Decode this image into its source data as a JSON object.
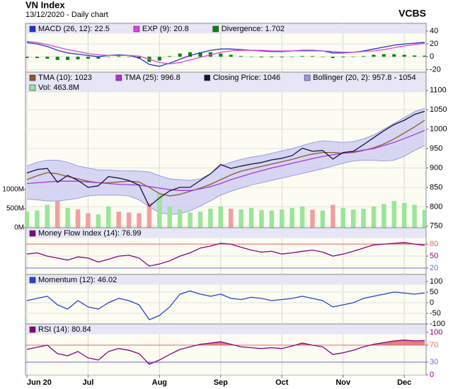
{
  "chart_data": {
    "type": "multi-panel",
    "title": "VN Index",
    "subtitle": "13/12/2020 - Daily chart",
    "source": "VCBS",
    "grid": true,
    "categories": [
      "Jun 20",
      null,
      null,
      null,
      null,
      null,
      "Jul",
      null,
      null,
      null,
      null,
      null,
      null,
      "Aug",
      null,
      null,
      null,
      null,
      null,
      "Sep",
      null,
      null,
      null,
      null,
      null,
      "Oct",
      null,
      null,
      null,
      null,
      null,
      "Nov",
      null,
      null,
      null,
      null,
      null,
      "Dec",
      null,
      null
    ],
    "panels": [
      {
        "type": "line",
        "ylim": [
          -24,
          52
        ],
        "yticks": [
          40,
          20,
          0,
          -20
        ],
        "series": [
          {
            "name": "MACD (26, 12): 22.5",
            "color": "#2233cc",
            "values": [
              22,
              20,
              16,
              10,
              6,
              4,
              2,
              0,
              2,
              3,
              2,
              -2,
              -12,
              -15,
              -10,
              -4,
              2,
              6,
              10,
              12,
              12,
              11,
              10,
              9,
              8,
              8,
              9,
              10,
              10,
              9,
              6,
              6,
              7,
              9,
              12,
              15,
              18,
              20,
              21,
              22.5
            ]
          },
          {
            "name": "EXP (9): 20.8",
            "color": "#dd44dd",
            "values": [
              24,
              22,
              19,
              15,
              11,
              8,
              5,
              3,
              2,
              2,
              2,
              1,
              -4,
              -9,
              -11,
              -9,
              -5,
              -1,
              3,
              7,
              9,
              10,
              10,
              10,
              9,
              9,
              9,
              9,
              9,
              9,
              8,
              7,
              7,
              8,
              9,
              11,
              14,
              17,
              19,
              20.8
            ]
          },
          {
            "name": "Divergence: 1.702",
            "color": "#008800",
            "type": "bar",
            "values": [
              -2,
              -2,
              -3,
              -5,
              -5,
              -4,
              -3,
              -3,
              0,
              1,
              0,
              -3,
              -8,
              -6,
              1,
              5,
              7,
              7,
              7,
              5,
              3,
              1,
              0,
              -1,
              -1,
              -1,
              0,
              1,
              1,
              0,
              -2,
              -1,
              0,
              1,
              3,
              4,
              4,
              3,
              2,
              1.702
            ]
          }
        ]
      },
      {
        "type": "line",
        "ylim": [
          746,
          1147
        ],
        "yticks": [
          1100,
          1050,
          1000,
          950,
          900,
          850,
          800,
          750
        ],
        "y2lim": [
          0,
          4074
        ],
        "y2ticks": [
          {
            "value": 1000,
            "label": "1000M"
          },
          {
            "value": 500,
            "label": "500M"
          },
          {
            "value": 0,
            "label": "0M"
          }
        ],
        "series": [
          {
            "name": "TMA (10): 1023",
            "color": "#8b5a2b",
            "values": [
              870,
              880,
              888,
              885,
              878,
              872,
              866,
              862,
              862,
              864,
              866,
              864,
              850,
              834,
              828,
              832,
              840,
              848,
              858,
              870,
              882,
              892,
              898,
              904,
              910,
              916,
              922,
              930,
              936,
              940,
              940,
              938,
              940,
              945,
              952,
              962,
              975,
              990,
              1006,
              1023
            ]
          },
          {
            "name": "TMA (25): 996.8",
            "color": "#aa33dd",
            "values": [
              860,
              862,
              864,
              866,
              866,
              866,
              864,
              862,
              860,
              858,
              857,
              856,
              852,
              848,
              844,
              842,
              842,
              846,
              852,
              860,
              870,
              878,
              886,
              893,
              900,
              906,
              912,
              918,
              924,
              930,
              934,
              938,
              942,
              946,
              950,
              958,
              966,
              976,
              986,
              996.8
            ]
          },
          {
            "name": "Closing Price: 1046",
            "color": "#14143c",
            "values": [
              887,
              896,
              899,
              863,
              881,
              868,
              850,
              854,
              878,
              874,
              868,
              856,
              801,
              823,
              841,
              850,
              850,
              868,
              885,
              909,
              899,
              905,
              910,
              914,
              921,
              925,
              932,
              951,
              943,
              945,
              923,
              940,
              943,
              960,
              978,
              996,
              1012,
              1023,
              1038,
              1046
            ]
          },
          {
            "name": "Bollinger (20, 2): 957.8 - 1054",
            "color": "#9a9ae6",
            "fill": "#c9c9f2",
            "type": "band",
            "upper": [
              905,
              915,
              920,
              920,
              915,
              905,
              900,
              895,
              895,
              893,
              893,
              892,
              890,
              880,
              872,
              870,
              868,
              872,
              885,
              905,
              915,
              922,
              928,
              932,
              938,
              944,
              950,
              958,
              965,
              970,
              968,
              966,
              968,
              975,
              985,
              1000,
              1015,
              1030,
              1045,
              1054
            ],
            "lower": [
              820,
              818,
              815,
              815,
              818,
              822,
              828,
              830,
              830,
              830,
              828,
              818,
              800,
              785,
              780,
              782,
              790,
              802,
              815,
              830,
              840,
              848,
              856,
              862,
              868,
              874,
              880,
              886,
              892,
              898,
              905,
              912,
              918,
              920,
              920,
              918,
              920,
              930,
              945,
              957.8
            ]
          },
          {
            "name": "Vol: 463.8M",
            "color": "#99e699",
            "type": "bar",
            "axis": "y2",
            "values": [
              420,
              450,
              600,
              700,
              520,
              480,
              380,
              350,
              560,
              420,
              400,
              380,
              650,
              900,
              560,
              480,
              400,
              420,
              500,
              560,
              500,
              480,
              520,
              460,
              450,
              480,
              520,
              560,
              470,
              450,
              600,
              520,
              480,
              500,
              560,
              620,
              700,
              650,
              600,
              463.8
            ],
            "colors": [
              "#99e699",
              "#99e699",
              "#99e699",
              "#f0a0a0",
              "#99e699",
              "#f0a0a0",
              "#f0a0a0",
              "#99e699",
              "#99e699",
              "#f0a0a0",
              "#f0a0a0",
              "#f0a0a0",
              "#f0a0a0",
              "#99e699",
              "#99e699",
              "#99e699",
              "#99e699",
              "#99e699",
              "#99e699",
              "#99e699",
              "#f0a0a0",
              "#99e699",
              "#99e699",
              "#99e699",
              "#99e699",
              "#99e699",
              "#99e699",
              "#99e699",
              "#f0a0a0",
              "#99e699",
              "#f0a0a0",
              "#99e699",
              "#99e699",
              "#99e699",
              "#99e699",
              "#99e699",
              "#99e699",
              "#99e699",
              "#99e699",
              "#99e699"
            ]
          }
        ]
      },
      {
        "type": "line",
        "ylim": [
          4,
          121
        ],
        "yticks": [
          80,
          50,
          20
        ],
        "bands": {
          "upper": 80,
          "lower": 20,
          "upper_color": "#e06a6a",
          "lower_color": "#6a6ae0"
        },
        "series": [
          {
            "name": "Money Flow Index (14): 76.99",
            "color": "#880088",
            "values": [
              55,
              58,
              50,
              45,
              40,
              48,
              45,
              35,
              42,
              50,
              52,
              45,
              25,
              30,
              38,
              50,
              58,
              70,
              75,
              82,
              80,
              72,
              65,
              60,
              62,
              55,
              58,
              62,
              65,
              60,
              50,
              55,
              62,
              70,
              78,
              80,
              82,
              84,
              80,
              76.99
            ]
          }
        ]
      },
      {
        "type": "line",
        "ylim": [
          -100,
          133
        ],
        "yticks": [
          100,
          50,
          0,
          -50,
          -100
        ],
        "series": [
          {
            "name": "Momentum (12): 46.02",
            "color": "#2244cc",
            "values": [
              10,
              20,
              30,
              -10,
              -30,
              10,
              -20,
              -30,
              0,
              20,
              10,
              -10,
              -80,
              -60,
              -20,
              40,
              55,
              40,
              30,
              40,
              20,
              15,
              25,
              20,
              10,
              15,
              20,
              30,
              20,
              10,
              -20,
              -10,
              0,
              20,
              30,
              40,
              50,
              45,
              40,
              46.02
            ]
          }
        ]
      },
      {
        "type": "line",
        "ylim": [
          0,
          120
        ],
        "yticks": [
          100,
          70,
          30,
          0
        ],
        "bands": {
          "upper": 70,
          "lower": 30,
          "upper_color": "#e06a6a",
          "lower_color": "#6a6ae0"
        },
        "series": [
          {
            "name": "RSI (14): 80.84",
            "color": "#880088",
            "values": [
              60,
              65,
              70,
              50,
              45,
              55,
              40,
              35,
              55,
              62,
              58,
              50,
              25,
              35,
              48,
              60,
              66,
              72,
              75,
              78,
              72,
              66,
              64,
              62,
              64,
              62,
              68,
              75,
              70,
              66,
              48,
              52,
              58,
              66,
              72,
              76,
              80,
              82,
              80,
              80.84
            ]
          }
        ]
      }
    ]
  }
}
